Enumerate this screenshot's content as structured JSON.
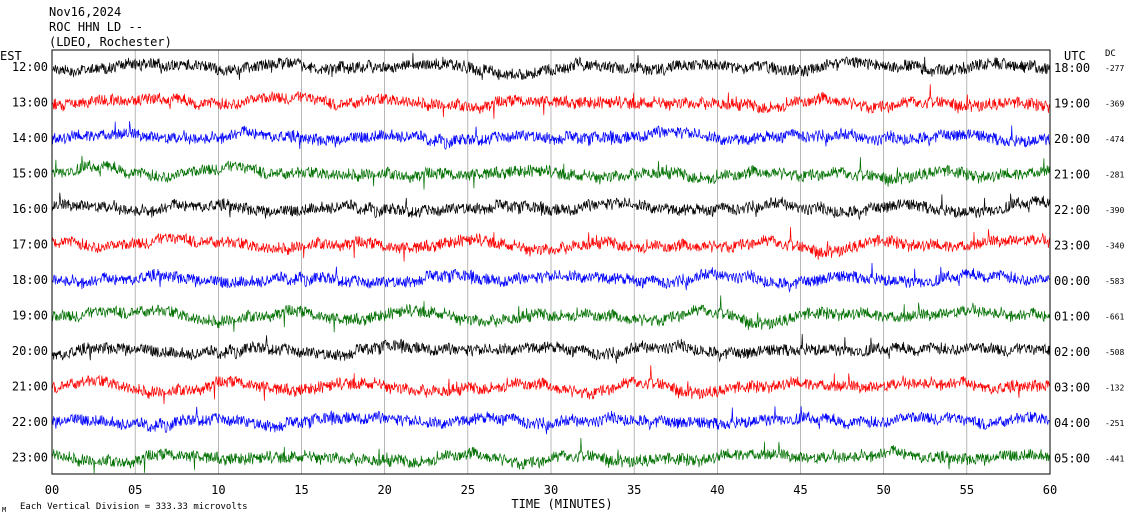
{
  "header": {
    "date": "Nov16,2024",
    "station": "ROC HHN LD --",
    "network": "(LDEO, Rochester)"
  },
  "left_axis_label": "EST",
  "right_axis_label": "UTC",
  "dc_label": "DC",
  "footer": {
    "scale_note": "Each Vertical Division =  333.33 microvolts",
    "corner_mark": "M"
  },
  "chart_data": {
    "type": "line",
    "title": "",
    "xlabel": "TIME (MINUTES)",
    "ylabel": "",
    "xlim": [
      0,
      60
    ],
    "x_ticks": [
      "00",
      "05",
      "10",
      "15",
      "20",
      "25",
      "30",
      "35",
      "40",
      "45",
      "50",
      "55",
      "60"
    ],
    "grid": true,
    "trace_colors": [
      "#000000",
      "#ff0000",
      "#0000ff",
      "#007000"
    ],
    "rows": [
      {
        "est": "12:00",
        "utc": "18:00",
        "dc": "-277",
        "color": "#000000"
      },
      {
        "est": "13:00",
        "utc": "19:00",
        "dc": "-369",
        "color": "#ff0000"
      },
      {
        "est": "14:00",
        "utc": "20:00",
        "dc": "-474",
        "color": "#0000ff"
      },
      {
        "est": "15:00",
        "utc": "21:00",
        "dc": "-281",
        "color": "#007000"
      },
      {
        "est": "16:00",
        "utc": "22:00",
        "dc": "-390",
        "color": "#000000"
      },
      {
        "est": "17:00",
        "utc": "23:00",
        "dc": "-340",
        "color": "#ff0000"
      },
      {
        "est": "18:00",
        "utc": "00:00",
        "dc": "-583",
        "color": "#0000ff"
      },
      {
        "est": "19:00",
        "utc": "01:00",
        "dc": "-661",
        "color": "#007000"
      },
      {
        "est": "20:00",
        "utc": "02:00",
        "dc": "-508",
        "color": "#000000"
      },
      {
        "est": "21:00",
        "utc": "03:00",
        "dc": "-132",
        "color": "#ff0000"
      },
      {
        "est": "22:00",
        "utc": "04:00",
        "dc": "-251",
        "color": "#0000ff"
      },
      {
        "est": "23:00",
        "utc": "05:00",
        "dc": "-441",
        "color": "#007000"
      }
    ]
  }
}
